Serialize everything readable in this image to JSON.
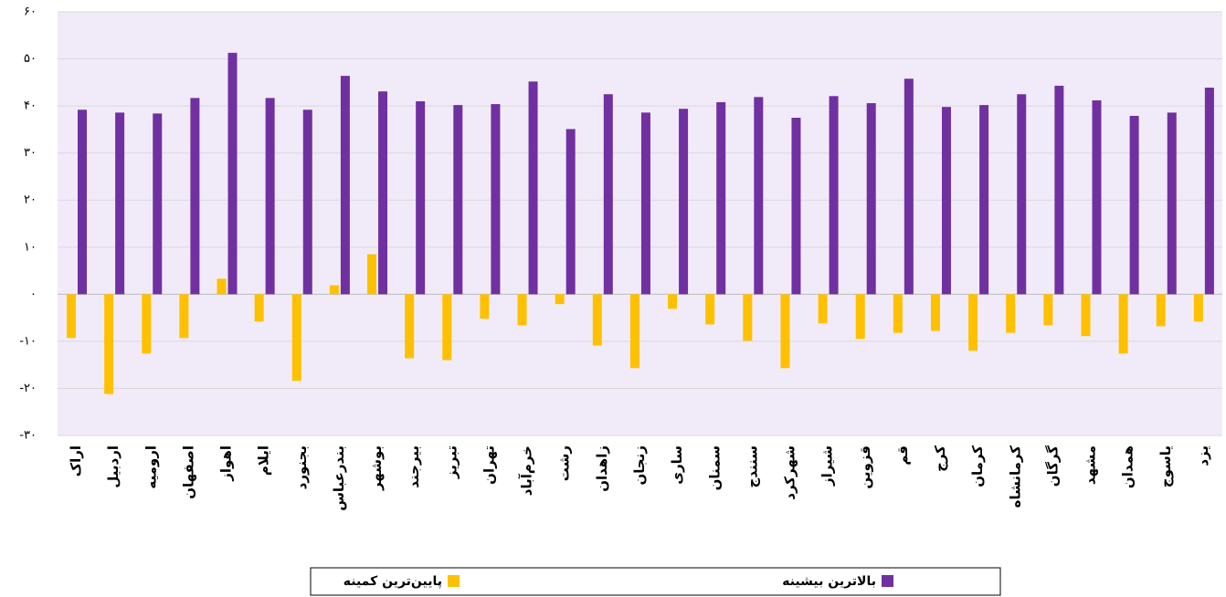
{
  "chart_data": {
    "type": "bar",
    "categories": [
      "اراک",
      "اردبیل",
      "ارومیه",
      "اصفهان",
      "اهواز",
      "ایلام",
      "بجنورد",
      "بندرعباس",
      "بوشهر",
      "بیرجند",
      "تبریز",
      "تهران",
      "خرم‌آباد",
      "رشت",
      "زاهدان",
      "زنجان",
      "ساری",
      "سمنان",
      "سنندج",
      "شهرکرد",
      "شیراز",
      "قزوین",
      "قم",
      "کرج",
      "کرمان",
      "کرمانشاه",
      "گرگان",
      "مشهد",
      "همدان",
      "یاسوج",
      "یزد"
    ],
    "series": [
      {
        "name": "بالاترین بیشینه",
        "color": "#7030a0",
        "values": [
          39.2,
          38.6,
          38.4,
          41.7,
          51.3,
          41.7,
          39.2,
          46.4,
          43.1,
          41.0,
          40.2,
          40.4,
          45.2,
          35.1,
          42.5,
          38.6,
          39.4,
          40.8,
          41.9,
          37.5,
          42.1,
          40.6,
          45.8,
          39.8,
          40.2,
          42.5,
          44.3,
          41.2,
          37.9,
          38.6,
          43.9
        ]
      },
      {
        "name": "پایین‌ترین کمینه",
        "color": "#ffc000",
        "values": [
          -9.3,
          -21.2,
          -12.6,
          -9.3,
          3.3,
          -5.8,
          -18.4,
          1.9,
          8.5,
          -13.6,
          -14.0,
          -5.2,
          -6.6,
          -2.1,
          -10.9,
          -15.7,
          -3.1,
          -6.4,
          -9.9,
          -15.7,
          -6.2,
          -9.5,
          -8.2,
          -7.8,
          -12.0,
          -8.2,
          -6.6,
          -8.9,
          -12.6,
          -6.8,
          -5.8
        ]
      }
    ],
    "ylim": [
      -30,
      60
    ],
    "yticks": [
      {
        "value": -30,
        "label": "-۳۰"
      },
      {
        "value": -20,
        "label": "-۲۰"
      },
      {
        "value": -10,
        "label": "-۱۰"
      },
      {
        "value": 0,
        "label": "۰"
      },
      {
        "value": 10,
        "label": "۱۰"
      },
      {
        "value": 20,
        "label": "۲۰"
      },
      {
        "value": 30,
        "label": "۳۰"
      },
      {
        "value": 40,
        "label": "۴۰"
      },
      {
        "value": 50,
        "label": "۵۰"
      },
      {
        "value": 60,
        "label": "۶۰"
      }
    ],
    "grid": true,
    "legend": "bottom"
  }
}
